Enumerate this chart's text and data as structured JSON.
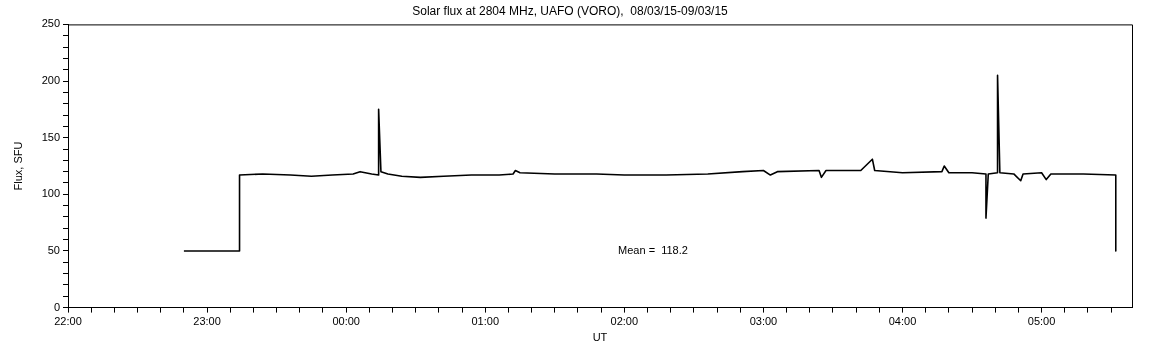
{
  "chart_data": {
    "type": "line",
    "title": "Solar flux at 2804 MHz, UAFO (VORO),  08/03/15-09/03/15",
    "xlabel": "UT",
    "ylabel": "Flux, SFU",
    "annotations": [
      "Mean =  118.2"
    ],
    "x": [
      "--03-08T22:50",
      "--03-08T23:14",
      "--03-08T23:14",
      "--03-08T23:24",
      "--03-08T23:36",
      "--03-08T23:45",
      "--03-08T23:54",
      "--03-09T00:03",
      "--03-09T00:06",
      "--03-09T00:11",
      "--03-09T00:14",
      "--03-09T00:14",
      "--03-09T00:15",
      "--03-09T00:18",
      "--03-09T00:24",
      "--03-09T00:32",
      "--03-09T00:42",
      "--03-09T00:54",
      "--03-09T01:06",
      "--03-09T01:12",
      "--03-09T01:13",
      "--03-09T01:15",
      "--03-09T01:30",
      "--03-09T01:48",
      "--03-09T02:00",
      "--03-09T02:18",
      "--03-09T02:36",
      "--03-09T02:51",
      "--03-09T03:00",
      "--03-09T03:03",
      "--03-09T03:06",
      "--03-09T03:24",
      "--03-09T03:25",
      "--03-09T03:27",
      "--03-09T03:42",
      "--03-09T03:47",
      "--03-09T03:48",
      "--03-09T04:00",
      "--03-09T04:17",
      "--03-09T04:18",
      "--03-09T04:20",
      "--03-09T04:30",
      "--03-09T04:36",
      "--03-09T04:36",
      "--03-09T04:37",
      "--03-09T04:41",
      "--03-09T04:41",
      "--03-09T04:42",
      "--03-09T04:48",
      "--03-09T04:51",
      "--03-09T04:52",
      "--03-09T05:00",
      "--03-09T05:02",
      "--03-09T05:04",
      "--03-09T05:18",
      "--03-09T05:32",
      "--03-09T05:32"
    ],
    "series": [
      {
        "color": "#000000",
        "values": [
          50,
          50,
          117,
          118,
          117,
          116,
          117,
          118,
          120,
          118,
          117,
          175,
          120,
          118,
          116,
          115,
          116,
          117,
          117,
          118,
          121,
          119,
          118,
          118,
          117,
          117,
          118,
          120,
          121,
          117,
          120,
          121,
          115,
          121,
          121,
          131,
          121,
          119,
          120,
          125,
          119,
          119,
          118,
          79,
          118,
          119,
          205,
          119,
          118,
          112,
          118,
          119,
          113,
          118,
          118,
          117,
          50
        ]
      }
    ],
    "xlim": [
      "--03-08T22:00",
      "--03-09T05:39"
    ],
    "xticks": [
      {
        "value": "--03-08T22:00",
        "label": "22:00"
      },
      {
        "value": "--03-08T22:10",
        "label": null
      },
      {
        "value": "--03-08T22:20",
        "label": null
      },
      {
        "value": "--03-08T22:30",
        "label": null
      },
      {
        "value": "--03-08T22:40",
        "label": null
      },
      {
        "value": "--03-08T22:50",
        "label": null
      },
      {
        "value": "--03-08T23:00",
        "label": "23:00"
      },
      {
        "value": "--03-08T23:10",
        "label": null
      },
      {
        "value": "--03-08T23:20",
        "label": null
      },
      {
        "value": "--03-08T23:30",
        "label": null
      },
      {
        "value": "--03-08T23:40",
        "label": null
      },
      {
        "value": "--03-08T23:50",
        "label": null
      },
      {
        "value": "--03-09T00:00",
        "label": "00:00"
      },
      {
        "value": "--03-09T00:10",
        "label": null
      },
      {
        "value": "--03-09T00:20",
        "label": null
      },
      {
        "value": "--03-09T00:30",
        "label": null
      },
      {
        "value": "--03-09T00:40",
        "label": null
      },
      {
        "value": "--03-09T00:50",
        "label": null
      },
      {
        "value": "--03-09T01:00",
        "label": "01:00"
      },
      {
        "value": "--03-09T01:10",
        "label": null
      },
      {
        "value": "--03-09T01:20",
        "label": null
      },
      {
        "value": "--03-09T01:30",
        "label": null
      },
      {
        "value": "--03-09T01:40",
        "label": null
      },
      {
        "value": "--03-09T01:50",
        "label": null
      },
      {
        "value": "--03-09T02:00",
        "label": "02:00"
      },
      {
        "value": "--03-09T02:10",
        "label": null
      },
      {
        "value": "--03-09T02:20",
        "label": null
      },
      {
        "value": "--03-09T02:30",
        "label": null
      },
      {
        "value": "--03-09T02:40",
        "label": null
      },
      {
        "value": "--03-09T02:50",
        "label": null
      },
      {
        "value": "--03-09T03:00",
        "label": "03:00"
      },
      {
        "value": "--03-09T03:10",
        "label": null
      },
      {
        "value": "--03-09T03:20",
        "label": null
      },
      {
        "value": "--03-09T03:30",
        "label": null
      },
      {
        "value": "--03-09T03:40",
        "label": null
      },
      {
        "value": "--03-09T03:50",
        "label": null
      },
      {
        "value": "--03-09T04:00",
        "label": "04:00"
      },
      {
        "value": "--03-09T04:10",
        "label": null
      },
      {
        "value": "--03-09T04:20",
        "label": null
      },
      {
        "value": "--03-09T04:30",
        "label": null
      },
      {
        "value": "--03-09T04:40",
        "label": null
      },
      {
        "value": "--03-09T04:50",
        "label": null
      },
      {
        "value": "--03-09T05:00",
        "label": "05:00"
      },
      {
        "value": "--03-09T05:10",
        "label": null
      },
      {
        "value": "--03-09T05:20",
        "label": null
      },
      {
        "value": "--03-09T05:30",
        "label": null
      }
    ],
    "ylim": [
      0,
      250
    ],
    "yticks": [
      0,
      {
        "value": 10,
        "label": null
      },
      {
        "value": 20,
        "label": null
      },
      {
        "value": 30,
        "label": null
      },
      {
        "value": 40,
        "label": null
      },
      50,
      {
        "value": 60,
        "label": null
      },
      {
        "value": 70,
        "label": null
      },
      {
        "value": 80,
        "label": null
      },
      {
        "value": 90,
        "label": null
      },
      100,
      {
        "value": 110,
        "label": null
      },
      {
        "value": 120,
        "label": null
      },
      {
        "value": 130,
        "label": null
      },
      {
        "value": 140,
        "label": null
      },
      150,
      {
        "value": 160,
        "label": null
      },
      {
        "value": 170,
        "label": null
      },
      {
        "value": 180,
        "label": null
      },
      {
        "value": 190,
        "label": null
      },
      200,
      {
        "value": 210,
        "label": null
      },
      {
        "value": 220,
        "label": null
      },
      {
        "value": 230,
        "label": null
      },
      {
        "value": 240,
        "label": null
      },
      250
    ],
    "grid": false,
    "legend": false
  }
}
